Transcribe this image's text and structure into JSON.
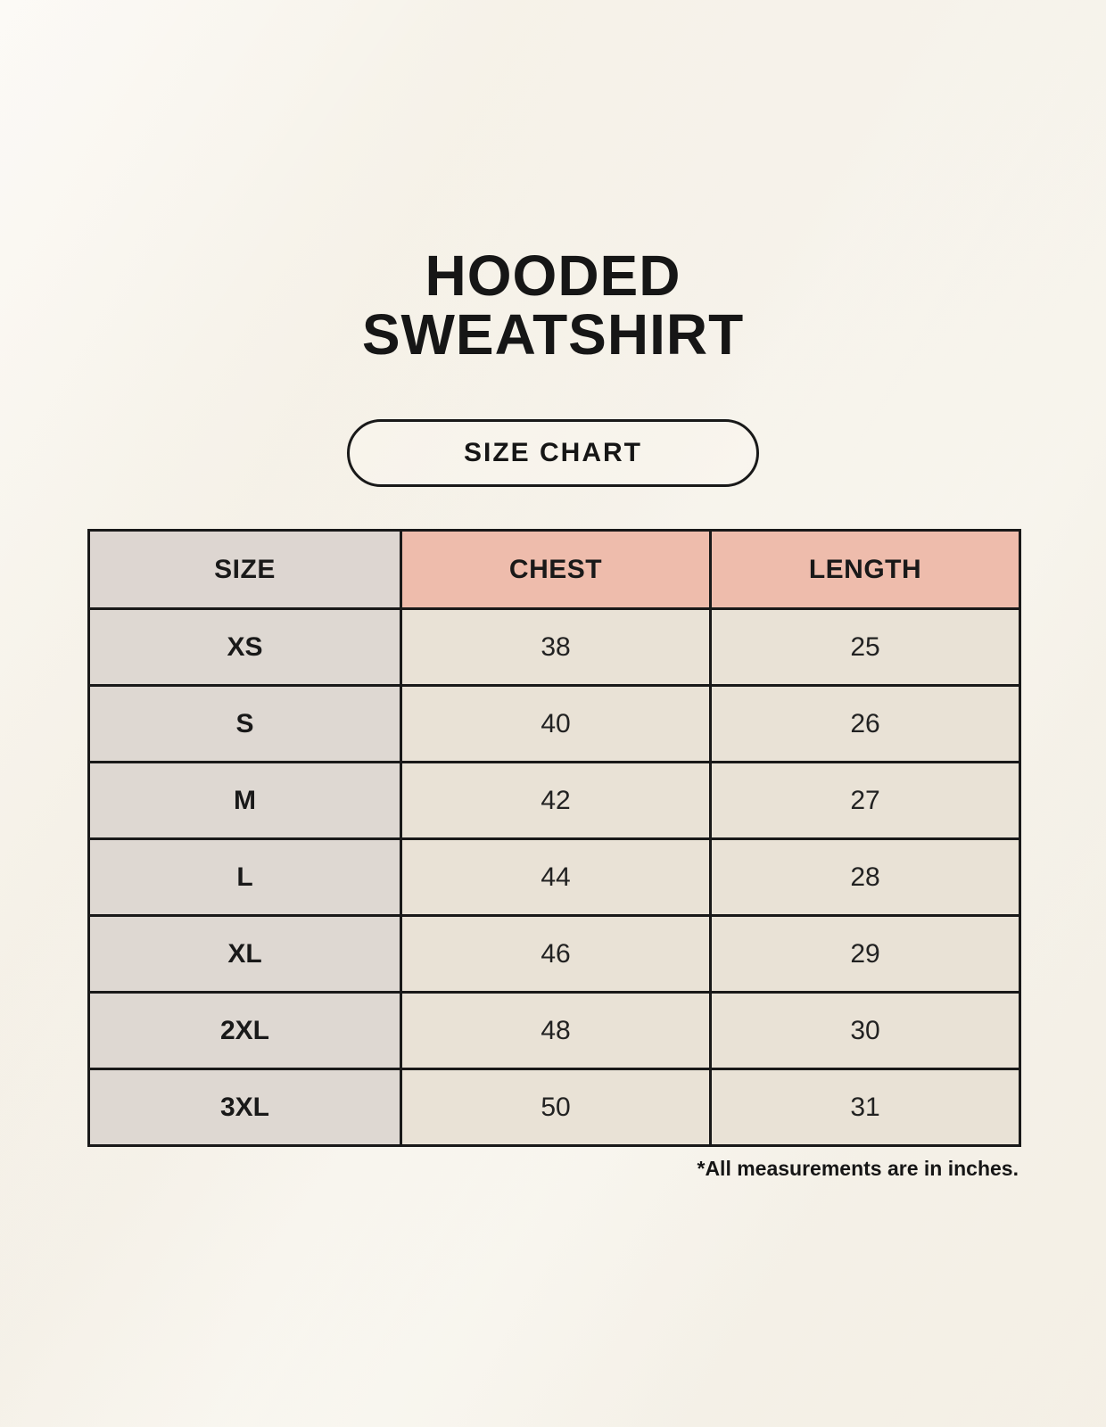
{
  "page": {
    "title_line1": "HOODED",
    "title_line2": "SWEATSHIRT",
    "badge_label": "SIZE CHART",
    "footnote": "*All measurements are in inches."
  },
  "table": {
    "columns": [
      "SIZE",
      "CHEST",
      "LENGTH"
    ],
    "rows": [
      {
        "size": "XS",
        "chest": "38",
        "length": "25"
      },
      {
        "size": "S",
        "chest": "40",
        "length": "26"
      },
      {
        "size": "M",
        "chest": "42",
        "length": "27"
      },
      {
        "size": "L",
        "chest": "44",
        "length": "28"
      },
      {
        "size": "XL",
        "chest": "46",
        "length": "29"
      },
      {
        "size": "2XL",
        "chest": "48",
        "length": "30"
      },
      {
        "size": "3XL",
        "chest": "50",
        "length": "31"
      }
    ]
  },
  "chart_data": {
    "type": "table",
    "title": "HOODED SWEATSHIRT",
    "subtitle": "SIZE CHART",
    "columns": [
      "SIZE",
      "CHEST",
      "LENGTH"
    ],
    "rows": [
      [
        "XS",
        38,
        25
      ],
      [
        "S",
        40,
        26
      ],
      [
        "M",
        42,
        27
      ],
      [
        "L",
        44,
        28
      ],
      [
        "XL",
        46,
        29
      ],
      [
        "2XL",
        48,
        30
      ],
      [
        "3XL",
        50,
        31
      ]
    ],
    "units": "inches",
    "annotations": [
      "*All measurements are in inches."
    ]
  },
  "colors": {
    "background": "#f7f3ea",
    "header_size_bg": "#ddd6d1",
    "header_measure_bg": "#eebcac",
    "row_label_bg": "#ded8d2",
    "row_value_bg": "#e9e2d6",
    "table_border": "#191919",
    "text": "#161616"
  }
}
